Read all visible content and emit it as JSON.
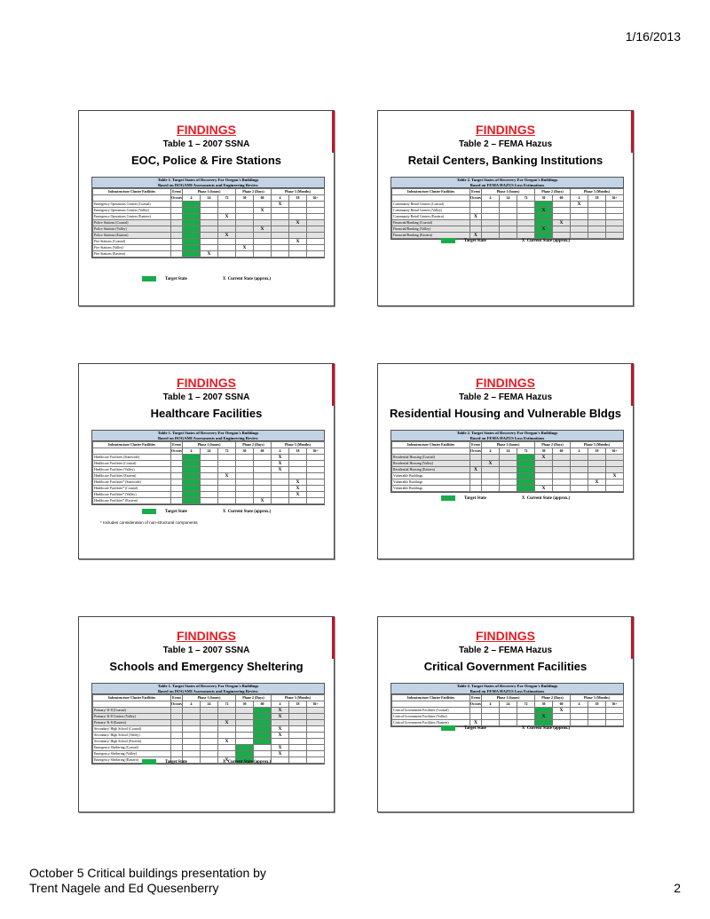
{
  "page": {
    "date": "1/16/2013",
    "footer_line1": "October 5 Critical buildings presentation by",
    "footer_line2": "Trent Nagele and Ed Quesenberry",
    "page_number": "2"
  },
  "colors": {
    "findings_red": "#e81c24",
    "target_green": "#1aab4a",
    "header_blue": "#c3d3e6"
  },
  "slides": [
    {
      "findings": "FINDINGS",
      "table_label": "Table 1 – 2007 SSNA",
      "subject": "EOC, Police & Fire Stations",
      "grid_title": "Table 1. Target States of Recovery For Oregon's Buildings",
      "grid_subtitle": "Based on DOGAMI Assessments and Engineering Review",
      "columns": {
        "facility": "Infrastructure Cluster Facilities",
        "event": "Event",
        "occurs": "Occurs",
        "phase1": "Phase 1 (hours)",
        "phase2": "Phase 2 (Days)",
        "phase3": "Phase 3 (Months)",
        "h1": "4",
        "h2": "24",
        "h3": "72",
        "d1": "30",
        "d2": "60",
        "m1": "4",
        "m2": "18",
        "m3": "36+"
      },
      "rows": [
        {
          "name": "Emergency Operations Centers (Coastal)",
          "x": 6
        },
        {
          "name": "Emergency Operations Centers (Valley)",
          "x": 5
        },
        {
          "name": "Emergency Operations Centers (Eastern)",
          "x": 3
        },
        {
          "name": "Police Stations (Coastal)",
          "x": 7
        },
        {
          "name": "Police Stations (Valley)",
          "x": 5
        },
        {
          "name": "Police Stations (Eastern)",
          "x": 3
        },
        {
          "name": "Fire Stations (Coastal)",
          "x": 7
        },
        {
          "name": "Fire Stations (Valley)",
          "x": 4
        },
        {
          "name": "Fire Stations (Eastern)",
          "x": 2
        }
      ],
      "legend_target": "Target State",
      "legend_current": "Current State (approx.)"
    },
    {
      "findings": "FINDINGS",
      "table_label": "Table 2 – FEMA Hazus",
      "subject": "Retail Centers, Banking Institutions",
      "grid_title": "Table 2. Target States of Recovery For Oregon's Buildings",
      "grid_subtitle": "Based on FEMA HAZUS Loss Estimations",
      "columns": {
        "facility": "Infrastructure Cluster Facilities",
        "event": "Event",
        "occurs": "Occurs",
        "phase1": "Phase 1 (hours)",
        "phase2": "Phase 2 (Days)",
        "phase3": "Phase 3 (Months)",
        "h1": "4",
        "h2": "24",
        "h3": "72",
        "d1": "30",
        "d2": "60",
        "m1": "4",
        "m2": "18",
        "m3": "36+"
      },
      "rows": [
        {
          "name": "Community Retail Centers (Coastal)",
          "x": 6
        },
        {
          "name": "Community Retail Centers (Valley)",
          "x": 4
        },
        {
          "name": "Community Retail Centers (Eastern)",
          "x": 0
        },
        {
          "name": "Financial/Banking (Coastal)",
          "x": 5
        },
        {
          "name": "Financial/Banking (Valley)",
          "x": 4
        },
        {
          "name": "Financial/Banking (Eastern)",
          "x": 0
        }
      ],
      "legend_target": "Target State",
      "legend_current": "Current State (approx.)"
    },
    {
      "findings": "FINDINGS",
      "table_label": "Table 1 – 2007 SSNA",
      "subject": "Healthcare Facilities",
      "grid_title": "Table 1. Target States of Recovery For Oregon's Buildings",
      "grid_subtitle": "Based on DOGAMI Assessments and Engineering Review",
      "columns": {
        "facility": "Infrastructure Cluster Facilities",
        "event": "Event",
        "occurs": "Occurs",
        "phase1": "Phase 1 (hours)",
        "phase2": "Phase 2 (Days)",
        "phase3": "Phase 3 (Months)",
        "h1": "4",
        "h2": "24",
        "h3": "72",
        "d1": "30",
        "d2": "60",
        "m1": "4",
        "m2": "18",
        "m3": "36+"
      },
      "rows": [
        {
          "name": "Healthcare Facilities (Statewide)",
          "x": 6
        },
        {
          "name": "Healthcare Facilities (Coastal)",
          "x": 6
        },
        {
          "name": "Healthcare Facilities (Valley)",
          "x": 6
        },
        {
          "name": "Healthcare Facilities (Eastern)",
          "x": 3
        },
        {
          "name": "Healthcare Facilities* (Statewide)",
          "x": 7
        },
        {
          "name": "Healthcare Facilities* (Coastal)",
          "x": 7
        },
        {
          "name": "Healthcare Facilities* (Valley)",
          "x": 7
        },
        {
          "name": "Healthcare Facilities* (Eastern)",
          "x": 5
        }
      ],
      "legend_target": "Target State",
      "legend_current": "Current State (approx.)",
      "footnote": "* Includes consideration of non-structural components"
    },
    {
      "findings": "FINDINGS",
      "table_label": "Table 2 – FEMA Hazus",
      "subject": "Residential Housing and Vulnerable Bldgs",
      "grid_title": "Table 2. Target States of Recovery For Oregon's Buildings",
      "grid_subtitle": "Based on FEMA HAZUS Loss Estimations",
      "columns": {
        "facility": "Infrastructure Cluster Facilities",
        "event": "Event",
        "occurs": "Occurs",
        "phase1": "Phase 1 (hours)",
        "phase2": "Phase 2 (Days)",
        "phase3": "Phase 3 (Months)",
        "h1": "4",
        "h2": "24",
        "h3": "72",
        "d1": "30",
        "d2": "60",
        "m1": "4",
        "m2": "18",
        "m3": "36+"
      },
      "rows": [
        {
          "name": "Residential Housing (Coastal)",
          "x": 4
        },
        {
          "name": "Residential Housing (Valley)",
          "x": 1
        },
        {
          "name": "Residential Housing (Eastern)",
          "x": 0
        },
        {
          "name": "Vulnerable Buildings",
          "x": 8
        },
        {
          "name": "Vulnerable Buildings",
          "x": 7
        },
        {
          "name": "Vulnerable Buildings",
          "x": 4
        }
      ],
      "legend_target": "Target State",
      "legend_current": "Current State (approx.)"
    },
    {
      "findings": "FINDINGS",
      "table_label": "Table 1 – 2007 SSNA",
      "subject": "Schools and Emergency Sheltering",
      "grid_title": "Table 1. Target States of Recovery For Oregon's Buildings",
      "grid_subtitle": "Based on DOGAMI Assessments and Engineering Review",
      "columns": {
        "facility": "Infrastructure Cluster Facilities",
        "event": "Event",
        "occurs": "Occurs",
        "phase1": "Phase 1 (hours)",
        "phase2": "Phase 2 (Days)",
        "phase3": "Phase 3 (Months)",
        "h1": "4",
        "h2": "24",
        "h3": "72",
        "d1": "30",
        "d2": "60",
        "m1": "4",
        "m2": "18",
        "m3": "36+"
      },
      "rows": [
        {
          "name": "Primary/ K-8 (Coastal)",
          "x": 6
        },
        {
          "name": "Primary/ K-8 Centers (Valley)",
          "x": 6
        },
        {
          "name": "Primary/ K-8 (Eastern)",
          "x": 3
        },
        {
          "name": "Secondary/ High School (Coastal)",
          "x": 6
        },
        {
          "name": "Secondary/ High School (Valley)",
          "x": 6
        },
        {
          "name": "Secondary/ High School (Eastern)",
          "x": 3
        },
        {
          "name": "Emergency Sheltering (Coastal)",
          "x": 6
        },
        {
          "name": "Emergency Sheltering (Valley)",
          "x": 6
        },
        {
          "name": "Emergency Sheltering (Eastern)",
          "x": 3
        }
      ],
      "legend_target": "Target State",
      "legend_current": "Current State (approx.)"
    },
    {
      "findings": "FINDINGS",
      "table_label": "Table 2 – FEMA Hazus",
      "subject": "Critical Government Facilities",
      "grid_title": "Table 2. Target States of Recovery For Oregon's Buildings",
      "grid_subtitle": "Based on FEMA HAZUS Loss Estimations",
      "columns": {
        "facility": "Infrastructure Cluster Facilities",
        "event": "Event",
        "occurs": "Occurs",
        "phase1": "Phase 1 (hours)",
        "phase2": "Phase 2 (Days)",
        "phase3": "Phase 3 (Months)",
        "h1": "4",
        "h2": "24",
        "h3": "72",
        "d1": "30",
        "d2": "60",
        "m1": "4",
        "m2": "18",
        "m3": "36+"
      },
      "rows": [
        {
          "name": "Critical Government Facilities (Coastal)",
          "x": 5
        },
        {
          "name": "Critical Government Facilities (Valley)",
          "x": 4
        },
        {
          "name": "Critical Government Facilities (Eastern)",
          "x": 0
        }
      ],
      "legend_target": "Target State",
      "legend_current": "Current State (approx.)"
    }
  ]
}
